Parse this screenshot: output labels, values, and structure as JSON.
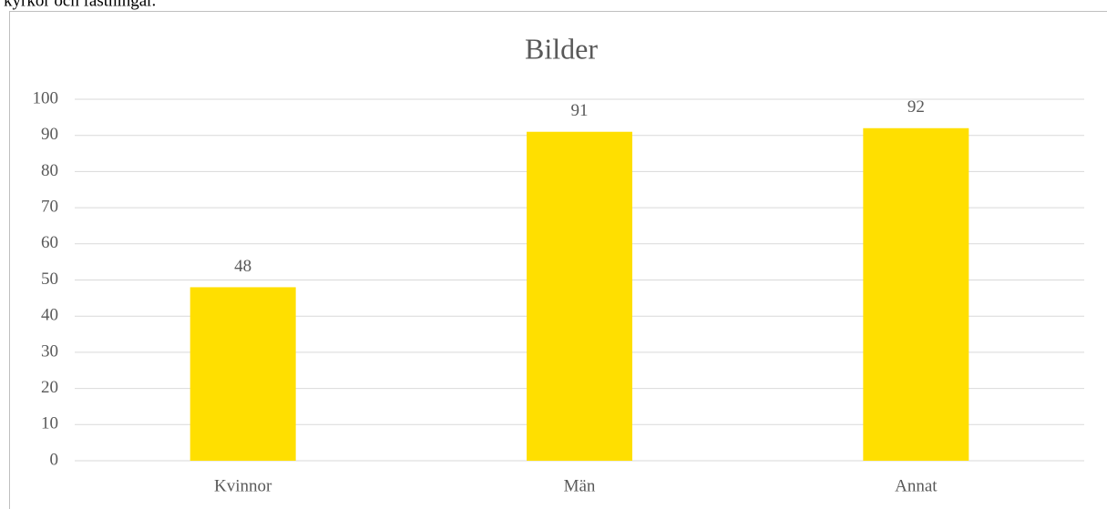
{
  "text_above": "kyrkor och fästningar.",
  "chart_data": {
    "type": "bar",
    "title": "Bilder",
    "categories": [
      "Kvinnor",
      "Män",
      "Annat"
    ],
    "values": [
      48,
      91,
      92
    ],
    "color": "#ffdf00",
    "ylim": [
      0,
      100
    ],
    "yticks": [
      0,
      10,
      20,
      30,
      40,
      50,
      60,
      70,
      80,
      90,
      100
    ],
    "grid": true,
    "data_labels": true
  }
}
